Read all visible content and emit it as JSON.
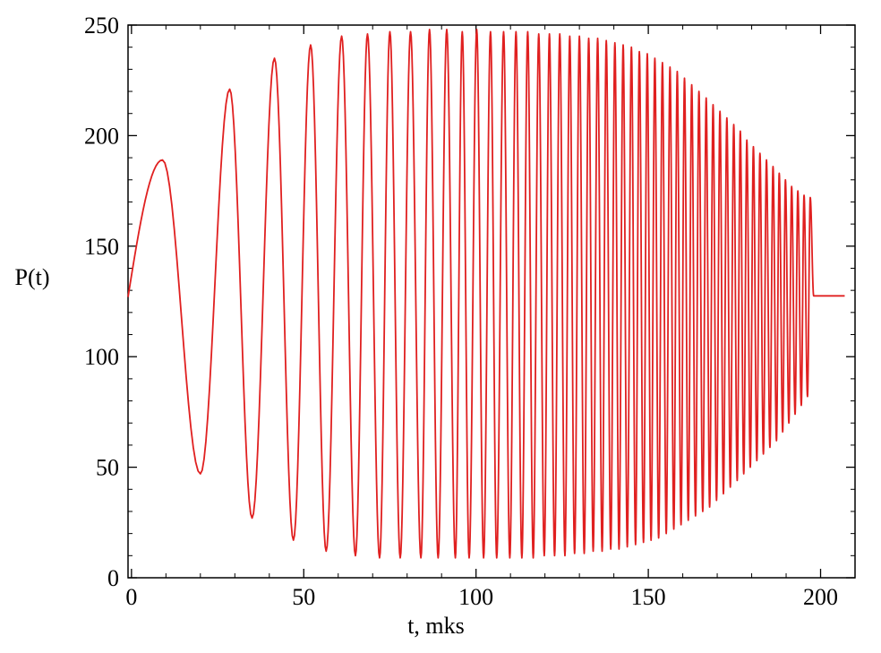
{
  "chart_data": {
    "type": "line",
    "title": "",
    "xlabel": "t, mks",
    "ylabel": "P(t)",
    "xlim": [
      -1,
      210
    ],
    "ylim": [
      0,
      250
    ],
    "x_ticks": [
      0,
      50,
      100,
      150,
      200
    ],
    "y_ticks": [
      0,
      50,
      100,
      150,
      200,
      250
    ],
    "grid": false,
    "legend": "none",
    "series": [
      {
        "color": "#e02020",
        "signal": {
          "kind": "chirp",
          "start_t": -1,
          "start_value": 127,
          "chirp_end_t": 198,
          "constant_value": 127.5,
          "end_t": 207,
          "peaks_t": [
            9,
            28.5,
            41.5,
            52,
            61,
            68.5,
            75,
            81,
            86.5,
            91.5,
            96,
            100.2,
            104.2,
            108,
            111.6,
            115,
            118.2,
            121.3,
            124.3,
            127.2,
            130,
            132.7,
            135.3,
            137.8,
            140.3,
            142.7,
            145.1,
            147.4,
            149.7,
            151.9,
            154.1,
            156.3,
            158.4,
            160.5,
            162.6,
            164.7,
            166.8,
            168.8,
            170.8,
            172.8,
            174.8,
            176.7,
            178.6,
            180.5,
            182.4,
            184.3,
            186.2,
            188,
            189.8,
            191.6,
            193.4,
            195.2,
            197
          ],
          "peaks_v": [
            189,
            221,
            235,
            241,
            245,
            246,
            247,
            247,
            248,
            248,
            247,
            248,
            247,
            247,
            247,
            247,
            246,
            246,
            246,
            245,
            245,
            244,
            244,
            243,
            242,
            241,
            240,
            238,
            237,
            235,
            233,
            231,
            229,
            226,
            223,
            220,
            217,
            214,
            211,
            208,
            205,
            202,
            198,
            195,
            192,
            189,
            186,
            183,
            180,
            177,
            175,
            173,
            172
          ],
          "troughs_t": [
            20,
            35,
            47,
            56.5,
            65,
            72,
            78,
            84,
            89,
            94,
            98,
            102.2,
            106,
            109.8,
            113.3,
            116.6,
            119.8,
            122.8,
            125.8,
            128.6,
            131.4,
            134,
            136.6,
            139.1,
            141.5,
            143.9,
            146.3,
            148.6,
            150.8,
            153,
            155.2,
            157.4,
            159.5,
            161.6,
            163.7,
            165.8,
            167.8,
            169.8,
            171.8,
            173.8,
            175.8,
            177.7,
            179.6,
            181.5,
            183.4,
            185.3,
            187.2,
            189,
            190.8,
            192.6,
            194.4,
            196.2
          ],
          "troughs_v": [
            47,
            27,
            17,
            12,
            10,
            9,
            9,
            9,
            9,
            9,
            9,
            9,
            9,
            9,
            9,
            9,
            10,
            10,
            10,
            11,
            11,
            12,
            12,
            13,
            13,
            14,
            15,
            16,
            17,
            18,
            20,
            22,
            24,
            26,
            28,
            30,
            32,
            35,
            38,
            41,
            44,
            47,
            50,
            53,
            56,
            59,
            62,
            66,
            70,
            74,
            78,
            82
          ]
        }
      }
    ]
  }
}
